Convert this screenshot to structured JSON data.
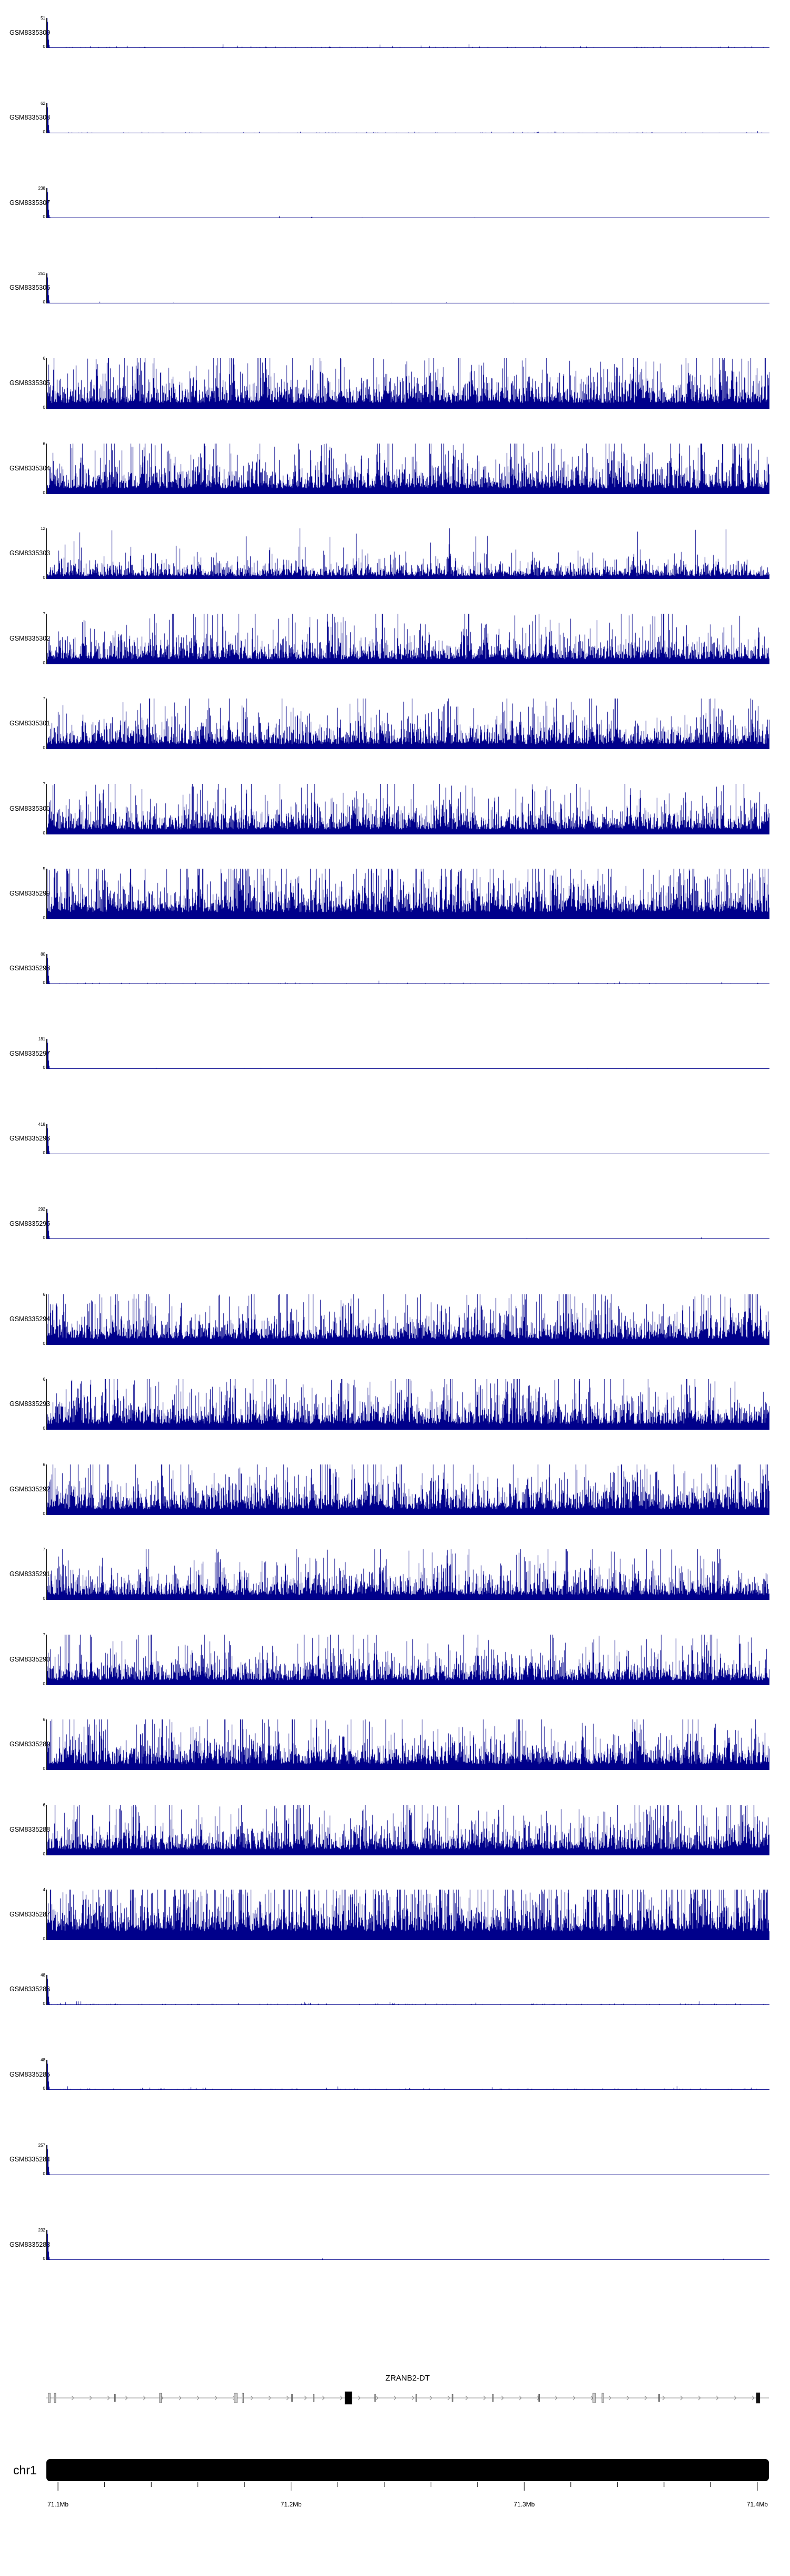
{
  "figure": {
    "background": "#ffffff"
  },
  "chart_data": {
    "type": "area",
    "title": "",
    "description": "Genome-browser read coverage figure: 27 sample tracks (dark blue signal), a gene model track and a chromosome axis",
    "signal_color": "#00008B",
    "region": {
      "chromosome": "chr1",
      "start_mb": 71.095,
      "end_mb": 71.405,
      "unit": "Mb"
    },
    "tracks": [
      {
        "label": "GSM8335309",
        "ymax": 51,
        "ymin": 0,
        "pattern": "spike"
      },
      {
        "label": "GSM8335308",
        "ymax": 62,
        "ymin": 0,
        "pattern": "spike"
      },
      {
        "label": "GSM8335307",
        "ymax": 238,
        "ymin": 0,
        "pattern": "spike"
      },
      {
        "label": "GSM8335306",
        "ymax": 251,
        "ymin": 0,
        "pattern": "spike"
      },
      {
        "label": "GSM8335305",
        "ymax": 6,
        "ymin": 0,
        "pattern": "dense"
      },
      {
        "label": "GSM8335304",
        "ymax": 6,
        "ymin": 0,
        "pattern": "dense"
      },
      {
        "label": "GSM8335303",
        "ymax": 12,
        "ymin": 0,
        "pattern": "dense"
      },
      {
        "label": "GSM8335302",
        "ymax": 7,
        "ymin": 0,
        "pattern": "dense"
      },
      {
        "label": "GSM8335301",
        "ymax": 7,
        "ymin": 0,
        "pattern": "dense"
      },
      {
        "label": "GSM8335300",
        "ymax": 7,
        "ymin": 0,
        "pattern": "dense"
      },
      {
        "label": "GSM8335299",
        "ymax": 5,
        "ymin": 0,
        "pattern": "dense"
      },
      {
        "label": "GSM8335298",
        "ymax": 80,
        "ymin": 0,
        "pattern": "spike"
      },
      {
        "label": "GSM8335297",
        "ymax": 181,
        "ymin": 0,
        "pattern": "spike"
      },
      {
        "label": "GSM8335296",
        "ymax": 418,
        "ymin": 0,
        "pattern": "spike"
      },
      {
        "label": "GSM8335295",
        "ymax": 292,
        "ymin": 0,
        "pattern": "spike"
      },
      {
        "label": "GSM8335294",
        "ymax": 6,
        "ymin": 0,
        "pattern": "dense"
      },
      {
        "label": "GSM8335293",
        "ymax": 6,
        "ymin": 0,
        "pattern": "dense"
      },
      {
        "label": "GSM8335292",
        "ymax": 6,
        "ymin": 0,
        "pattern": "dense"
      },
      {
        "label": "GSM8335291",
        "ymax": 7,
        "ymin": 0,
        "pattern": "dense"
      },
      {
        "label": "GSM8335290",
        "ymax": 7,
        "ymin": 0,
        "pattern": "dense"
      },
      {
        "label": "GSM8335289",
        "ymax": 6,
        "ymin": 0,
        "pattern": "dense"
      },
      {
        "label": "GSM8335288",
        "ymax": 6,
        "ymin": 0,
        "pattern": "dense"
      },
      {
        "label": "GSM8335287",
        "ymax": 4,
        "ymin": 0,
        "pattern": "dense"
      },
      {
        "label": "GSM8335286",
        "ymax": 48,
        "ymin": 0,
        "pattern": "spike"
      },
      {
        "label": "GSM8335285",
        "ymax": 48,
        "ymin": 0,
        "pattern": "spike"
      },
      {
        "label": "GSM8335284",
        "ymax": 257,
        "ymin": 0,
        "pattern": "spike"
      },
      {
        "label": "GSM8335283",
        "ymax": 232,
        "ymin": 0,
        "pattern": "spike"
      }
    ],
    "gene_track": {
      "label": "ZRANB2-DT",
      "strand": "right",
      "exons": [
        {
          "f": 0.004,
          "w": 4,
          "h": 18,
          "fill": "#c8c8c8"
        },
        {
          "f": 0.012,
          "w": 3,
          "h": 18,
          "fill": "#c8c8c8"
        },
        {
          "f": 0.095,
          "w": 2,
          "h": 14,
          "fill": "#909090"
        },
        {
          "f": 0.158,
          "w": 4,
          "h": 18,
          "fill": "#c8c8c8"
        },
        {
          "f": 0.262,
          "w": 6,
          "h": 18,
          "fill": "#c8c8c8"
        },
        {
          "f": 0.272,
          "w": 3,
          "h": 18,
          "fill": "#c8c8c8"
        },
        {
          "f": 0.34,
          "w": 2,
          "h": 14,
          "fill": "#909090"
        },
        {
          "f": 0.37,
          "w": 2,
          "h": 14,
          "fill": "#909090"
        },
        {
          "f": 0.418,
          "w": 13,
          "h": 24,
          "fill": "#000000"
        },
        {
          "f": 0.455,
          "w": 2,
          "h": 14,
          "fill": "#909090"
        },
        {
          "f": 0.512,
          "w": 2,
          "h": 14,
          "fill": "#909090"
        },
        {
          "f": 0.562,
          "w": 2,
          "h": 14,
          "fill": "#909090"
        },
        {
          "f": 0.618,
          "w": 2,
          "h": 14,
          "fill": "#909090"
        },
        {
          "f": 0.682,
          "w": 2,
          "h": 14,
          "fill": "#909090"
        },
        {
          "f": 0.758,
          "w": 5,
          "h": 18,
          "fill": "#c8c8c8"
        },
        {
          "f": 0.77,
          "w": 3,
          "h": 18,
          "fill": "#c8c8c8"
        },
        {
          "f": 0.848,
          "w": 2,
          "h": 14,
          "fill": "#909090"
        },
        {
          "f": 0.985,
          "w": 7,
          "h": 20,
          "fill": "#111111"
        }
      ]
    },
    "ideogram": {
      "label": "chr1",
      "bar_color": "#000000"
    },
    "axis": {
      "major_ticks": [
        {
          "mb": 71.1,
          "label": "71.1Mb"
        },
        {
          "mb": 71.2,
          "label": "71.2Mb"
        },
        {
          "mb": 71.3,
          "label": "71.3Mb"
        },
        {
          "mb": 71.4,
          "label": "71.4Mb"
        }
      ],
      "minor_tick_step_mb": 0.02
    }
  }
}
